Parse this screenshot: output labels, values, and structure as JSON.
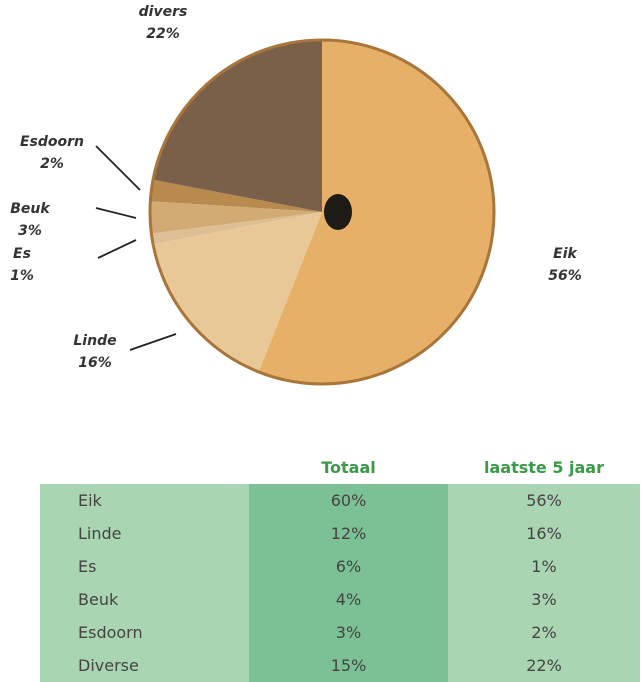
{
  "chart_data": {
    "type": "pie",
    "categories": [
      "Eik",
      "Linde",
      "Es",
      "Beuk",
      "Esdoorn",
      "divers"
    ],
    "values": [
      56,
      16,
      1,
      3,
      2,
      22
    ],
    "value_labels": [
      "56%",
      "16%",
      "1%",
      "3%",
      "2%",
      "22%"
    ],
    "colors": [
      "#e6b068",
      "#e9c898",
      "#dcbf94",
      "#d2aa74",
      "#b88a4e",
      "#7b6049"
    ]
  },
  "table": {
    "columns": [
      "Totaal",
      "laatste 5 jaar"
    ],
    "rows": [
      [
        "Eik",
        "60%",
        "56%"
      ],
      [
        "Linde",
        "12%",
        "16%"
      ],
      [
        "Es",
        "6%",
        "1%"
      ],
      [
        "Beuk",
        "4%",
        "3%"
      ],
      [
        "Esdoorn",
        "3%",
        "2%"
      ],
      [
        "Diverse",
        "15%",
        "22%"
      ]
    ]
  }
}
